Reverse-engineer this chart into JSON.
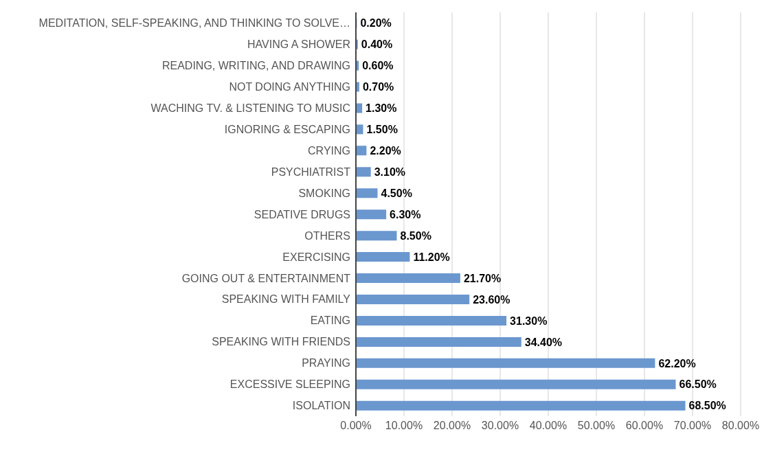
{
  "chart_data": {
    "type": "bar",
    "orientation": "horizontal",
    "categories": [
      "MEDITATION, SELF-SPEAKING, AND THINKING TO SOLVE…",
      "HAVING A SHOWER",
      "READING, WRITING, AND DRAWING",
      "NOT DOING ANYTHING",
      "WACHING TV. & LISTENING TO MUSIC",
      "IGNORING & ESCAPING",
      "CRYING",
      "PSYCHIATRIST",
      "SMOKING",
      "SEDATIVE DRUGS",
      "OTHERS",
      "EXERCISING",
      "GOING OUT & ENTERTAINMENT",
      "SPEAKING WITH FAMILY",
      "EATING",
      "SPEAKING WITH FRIENDS",
      "PRAYING",
      "EXCESSIVE SLEEPING",
      "ISOLATION"
    ],
    "values": [
      0.2,
      0.4,
      0.6,
      0.7,
      1.3,
      1.5,
      2.2,
      3.1,
      4.5,
      6.3,
      8.5,
      11.2,
      21.7,
      23.6,
      31.3,
      34.4,
      62.2,
      66.5,
      68.5
    ],
    "value_labels": [
      "0.20%",
      "0.40%",
      "0.60%",
      "0.70%",
      "1.30%",
      "1.50%",
      "2.20%",
      "3.10%",
      "4.50%",
      "6.30%",
      "8.50%",
      "11.20%",
      "21.70%",
      "23.60%",
      "31.30%",
      "34.40%",
      "62.20%",
      "66.50%",
      "68.50%"
    ],
    "color": "#6b97cf",
    "xlim": [
      0,
      80
    ],
    "xticks": [
      {
        "value": 0,
        "label": "0.00%"
      },
      {
        "value": 10,
        "label": "10.00%"
      },
      {
        "value": 20,
        "label": "20.00%"
      },
      {
        "value": 30,
        "label": "30.00%"
      },
      {
        "value": 40,
        "label": "40.00%"
      },
      {
        "value": 50,
        "label": "50.00%"
      },
      {
        "value": 60,
        "label": "60.00%"
      },
      {
        "value": 70,
        "label": "70.00%"
      },
      {
        "value": 80,
        "label": "80.00%"
      }
    ],
    "grid": "x",
    "legend": false
  }
}
